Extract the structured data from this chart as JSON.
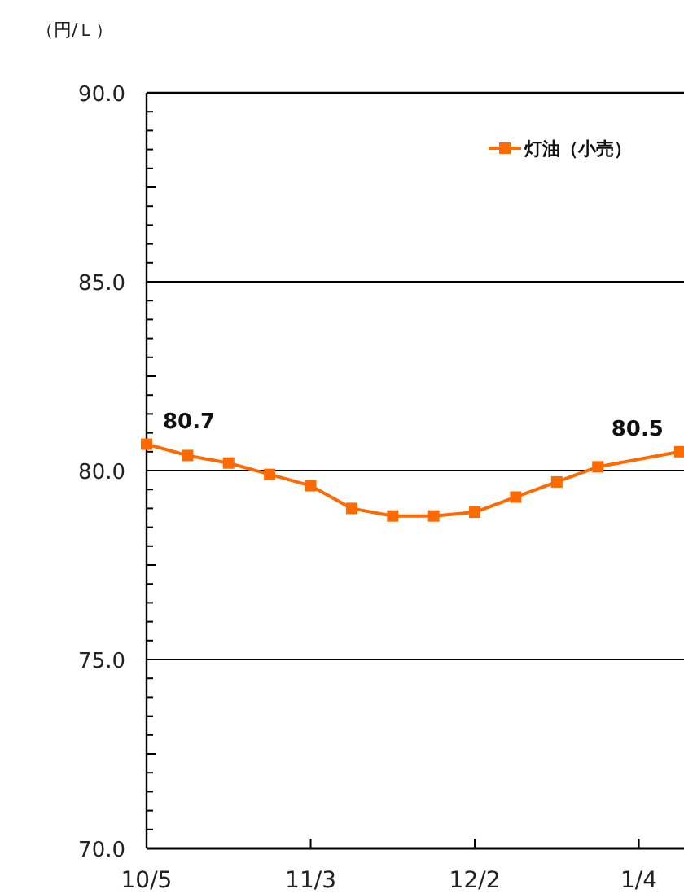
{
  "chart_data": {
    "type": "line",
    "ylabel": "（円/Ｌ）",
    "categories": [
      "10/5",
      null,
      null,
      null,
      "11/3",
      null,
      null,
      null,
      "12/2",
      null,
      null,
      null,
      "1/4",
      null
    ],
    "ylim": [
      70,
      90
    ],
    "yticks": [
      {
        "value": 70,
        "label": "70.0"
      },
      {
        "value": 75,
        "label": "75.0"
      },
      {
        "value": 80,
        "label": "80.0"
      },
      {
        "value": 85,
        "label": "85.0"
      },
      {
        "value": 90,
        "label": "90.0"
      }
    ],
    "grid": "y",
    "legend": "top right",
    "marker": "square",
    "line_style": "solid",
    "series": [
      {
        "name": "灯油（小売）",
        "color": "#ff6a00",
        "values": [
          80.7,
          80.4,
          80.2,
          79.9,
          79.6,
          79.0,
          78.8,
          78.8,
          78.9,
          79.3,
          79.7,
          80.1,
          null,
          80.5
        ],
        "value_labels": [
          "80.7",
          null,
          null,
          null,
          null,
          null,
          null,
          null,
          null,
          null,
          null,
          null,
          null,
          "80.5"
        ]
      }
    ]
  }
}
